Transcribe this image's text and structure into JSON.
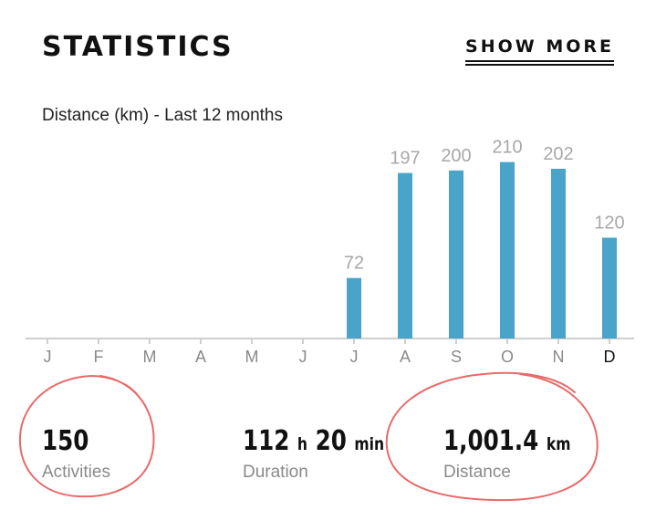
{
  "header": {
    "title": "STATISTICS",
    "show_more_label": "SHOW MORE"
  },
  "chart_subtitle": "Distance (km) - Last 12 months",
  "chart_data": {
    "type": "bar",
    "categories": [
      "J",
      "F",
      "M",
      "A",
      "M",
      "J",
      "J",
      "A",
      "S",
      "O",
      "N",
      "D"
    ],
    "values": [
      0,
      0,
      0,
      0,
      0,
      0,
      72,
      197,
      200,
      210,
      202,
      120
    ],
    "value_labels": [
      "",
      "",
      "",
      "",
      "",
      "",
      "72",
      "197",
      "200",
      "210",
      "202",
      "120"
    ],
    "ylim": [
      0,
      240
    ],
    "highlighted_category_index": 11,
    "bar_color": "#4aa3c8",
    "value_label_color": "#a8a8a8",
    "tick_label_color": "#8a8a8a",
    "highlight_tick_color": "#111111"
  },
  "stats": {
    "activities": {
      "value": "150",
      "unit": "",
      "label": "Activities"
    },
    "duration": {
      "hours": "112",
      "hours_unit": "h",
      "minutes": "20",
      "minutes_unit": "min",
      "label": "Duration"
    },
    "distance": {
      "value": "1,001.4",
      "unit": "km",
      "label": "Distance"
    }
  },
  "annotation_color": "#e86a6a"
}
